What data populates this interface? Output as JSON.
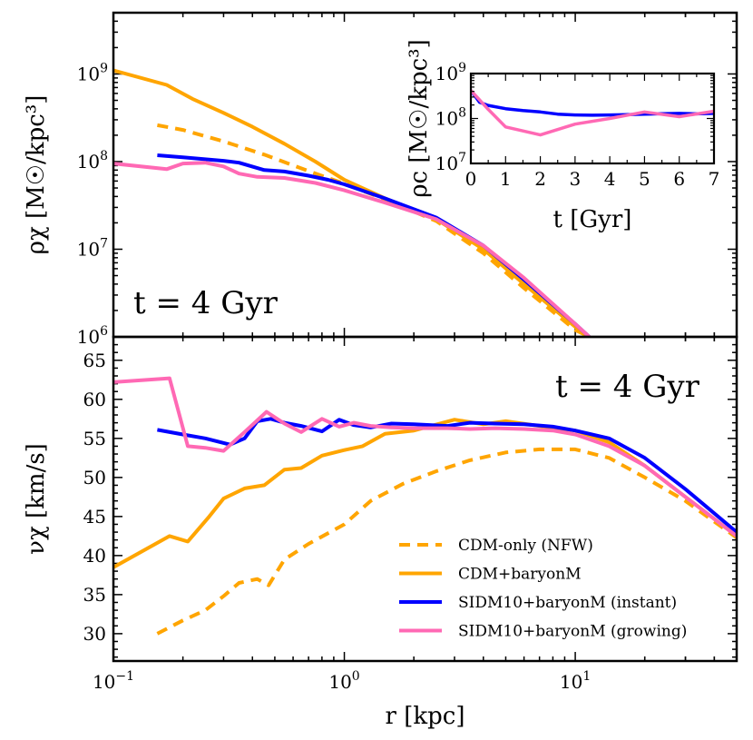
{
  "chart_data": [
    {
      "id": "density",
      "type": "line",
      "xscale": "log",
      "yscale": "log",
      "xlim": [
        0.1,
        50
      ],
      "ylim": [
        1000000,
        5000000000
      ],
      "ylabel": "ρχ [M☉/kpc³]",
      "annotation": "t = 4 Gyr",
      "ytick_values": [
        1000000,
        10000000,
        100000000,
        1000000000
      ],
      "ytick_labels": [
        {
          "base": "10",
          "exp": "6"
        },
        {
          "base": "10",
          "exp": "7"
        },
        {
          "base": "10",
          "exp": "8"
        },
        {
          "base": "10",
          "exp": "9"
        }
      ],
      "series": [
        {
          "name": "CDM-only (NFW)",
          "style": "dashed",
          "color": "#ffa500",
          "x": [
            0.155,
            0.2,
            0.3,
            0.45,
            0.7,
            1.0,
            1.5,
            2.5,
            4.0,
            6.0,
            10.0,
            11.5
          ],
          "y": [
            260000000,
            230000000,
            170000000,
            120000000,
            78000000,
            56000000,
            37000000,
            21000000,
            9000000,
            3600000,
            1200000,
            1000000
          ]
        },
        {
          "name": "CDM+baryonM",
          "style": "solid",
          "color": "#ffa500",
          "x": [
            0.1,
            0.17,
            0.22,
            0.3,
            0.4,
            0.55,
            0.75,
            1.0,
            1.5,
            2.5,
            4.0,
            6.0,
            10.0,
            11.5
          ],
          "y": [
            1100000000,
            750000000,
            520000000,
            360000000,
            250000000,
            160000000,
            100000000,
            62000000,
            38000000,
            22000000,
            10000000,
            4000000,
            1300000,
            1000000
          ]
        },
        {
          "name": "SIDM10+baryonM (instant)",
          "style": "solid",
          "color": "#0000ff",
          "x": [
            0.155,
            0.2,
            0.3,
            0.35,
            0.45,
            0.55,
            0.7,
            0.85,
            1.0,
            1.5,
            2.5,
            4.0,
            6.0,
            10.0,
            11.5
          ],
          "y": [
            118000000,
            112000000,
            102000000,
            97000000,
            80000000,
            77000000,
            69000000,
            62000000,
            55000000,
            38000000,
            23000000,
            11000000,
            4500000,
            1400000,
            1000000
          ]
        },
        {
          "name": "SIDM10+baryonM (growing)",
          "style": "solid",
          "color": "#ff69b4",
          "x": [
            0.1,
            0.17,
            0.2,
            0.25,
            0.3,
            0.35,
            0.42,
            0.55,
            0.75,
            1.0,
            1.5,
            2.5,
            4.0,
            6.0,
            10.0,
            11.5
          ],
          "y": [
            95000000,
            82000000,
            95000000,
            97000000,
            88000000,
            73000000,
            67000000,
            65000000,
            57000000,
            47000000,
            34000000,
            22000000,
            11000000,
            4700000,
            1400000,
            1000000
          ]
        }
      ]
    },
    {
      "id": "inset",
      "type": "line",
      "xscale": "linear",
      "yscale": "log",
      "xlim": [
        0,
        7
      ],
      "ylim": [
        10000000,
        1000000000
      ],
      "xlabel": "t [Gyr]",
      "ylabel": "ρc [M☉/kpc³]",
      "xtick_labels": [
        "0",
        "1",
        "2",
        "3",
        "4",
        "5",
        "6",
        "7"
      ],
      "ytick_values": [
        10000000,
        100000000,
        1000000000
      ],
      "ytick_labels": [
        {
          "base": "10",
          "exp": "7"
        },
        {
          "base": "10",
          "exp": "8"
        },
        {
          "base": "10",
          "exp": "9"
        }
      ],
      "series": [
        {
          "name": "SIDM10+baryonM (instant)",
          "color": "#0000ff",
          "x": [
            0,
            0.25,
            0.5,
            1.0,
            1.5,
            2.0,
            2.5,
            3.0,
            3.5,
            4.0,
            4.5,
            5.0,
            5.5,
            6.0,
            6.5,
            7.0
          ],
          "y": [
            420000000,
            230000000,
            195000000,
            165000000,
            150000000,
            140000000,
            125000000,
            120000000,
            118000000,
            120000000,
            122000000,
            125000000,
            128000000,
            130000000,
            127000000,
            130000000
          ]
        },
        {
          "name": "SIDM10+baryonM (growing)",
          "color": "#ff69b4",
          "x": [
            0,
            0.5,
            1.0,
            2.0,
            3.0,
            4.0,
            5.0,
            6.0,
            7.0
          ],
          "y": [
            420000000,
            160000000,
            65000000,
            43000000,
            75000000,
            100000000,
            140000000,
            110000000,
            145000000
          ]
        }
      ]
    },
    {
      "id": "velocity",
      "type": "line",
      "xscale": "log",
      "yscale": "linear",
      "xlim": [
        0.1,
        50
      ],
      "ylim": [
        26.5,
        68
      ],
      "xlabel": "r [kpc]",
      "ylabel": "νχ [km/s]",
      "annotation": "t = 4 Gyr",
      "xtick_values": [
        0.1,
        1,
        10
      ],
      "xtick_labels": [
        {
          "base": "10",
          "exp": "−1"
        },
        {
          "base": "10",
          "exp": "0"
        },
        {
          "base": "10",
          "exp": "1"
        }
      ],
      "ytick_labels": [
        "30",
        "35",
        "40",
        "45",
        "50",
        "55",
        "60",
        "65"
      ],
      "series": [
        {
          "name": "CDM-only (NFW)",
          "style": "dashed",
          "color": "#ffa500",
          "x": [
            0.155,
            0.2,
            0.25,
            0.3,
            0.35,
            0.42,
            0.47,
            0.55,
            0.7,
            1.0,
            1.3,
            1.8,
            2.5,
            3.5,
            5.0,
            7.0,
            10.0,
            14.0,
            20.0,
            30.0,
            50.0
          ],
          "y": [
            30.0,
            31.7,
            33.0,
            34.8,
            36.5,
            37.0,
            36.2,
            39.5,
            41.5,
            44.0,
            47.0,
            49.2,
            50.8,
            52.2,
            53.2,
            53.6,
            53.6,
            52.5,
            50.0,
            47.0,
            42.3
          ]
        },
        {
          "name": "CDM+baryonM",
          "style": "solid",
          "color": "#ffa500",
          "x": [
            0.1,
            0.175,
            0.21,
            0.26,
            0.3,
            0.37,
            0.45,
            0.55,
            0.65,
            0.8,
            1.0,
            1.2,
            1.5,
            2.0,
            3.0,
            4.0,
            5.0,
            7.0,
            10.0,
            14.0,
            20.0,
            30.0,
            50.0
          ],
          "y": [
            38.5,
            42.5,
            41.8,
            45.0,
            47.3,
            48.6,
            49.0,
            51.0,
            51.2,
            52.8,
            53.5,
            54.0,
            55.6,
            56.0,
            57.4,
            56.8,
            57.2,
            56.6,
            56.0,
            54.5,
            51.5,
            47.5,
            42.5
          ]
        },
        {
          "name": "SIDM10+baryonM (instant)",
          "style": "solid",
          "color": "#0000ff",
          "x": [
            0.155,
            0.2,
            0.25,
            0.32,
            0.37,
            0.42,
            0.48,
            0.55,
            0.65,
            0.8,
            0.95,
            1.1,
            1.3,
            1.6,
            2.0,
            2.8,
            3.5,
            4.5,
            6.0,
            8.0,
            10.0,
            14.0,
            20.0,
            30.0,
            50.0
          ],
          "y": [
            56.1,
            55.5,
            55.0,
            54.2,
            55.0,
            57.2,
            57.5,
            57.0,
            56.6,
            55.9,
            57.4,
            56.7,
            56.4,
            56.9,
            56.8,
            56.6,
            57.0,
            56.9,
            56.8,
            56.5,
            56.0,
            55.0,
            52.5,
            48.5,
            43.0
          ]
        },
        {
          "name": "SIDM10+baryonM (growing)",
          "style": "solid",
          "color": "#ff69b4",
          "x": [
            0.1,
            0.175,
            0.21,
            0.25,
            0.3,
            0.37,
            0.46,
            0.55,
            0.65,
            0.8,
            0.95,
            1.1,
            1.3,
            1.6,
            2.0,
            2.8,
            3.5,
            4.5,
            6.0,
            8.0,
            10.0,
            14.0,
            20.0,
            30.0,
            50.0
          ],
          "y": [
            62.2,
            62.7,
            54.0,
            53.8,
            53.4,
            55.8,
            58.4,
            56.9,
            55.8,
            57.5,
            56.5,
            57.0,
            56.6,
            56.4,
            56.3,
            56.3,
            56.2,
            56.3,
            56.2,
            56.0,
            55.5,
            54.0,
            51.5,
            47.5,
            42.5
          ]
        }
      ]
    }
  ],
  "legend": {
    "placement": "lower-right",
    "entries": [
      {
        "label": "CDM-only (NFW)",
        "color": "#ffa500",
        "style": "dashed"
      },
      {
        "label": "CDM+baryonM",
        "color": "#ffa500",
        "style": "solid"
      },
      {
        "label": "SIDM10+baryonM (instant)",
        "color": "#0000ff",
        "style": "solid"
      },
      {
        "label": "SIDM10+baryonM (growing)",
        "color": "#ff69b4",
        "style": "solid"
      }
    ]
  }
}
